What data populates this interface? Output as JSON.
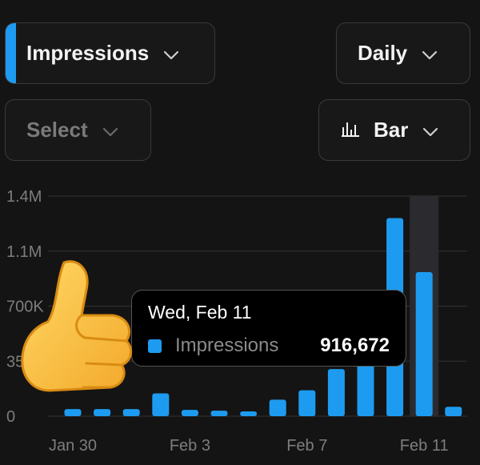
{
  "controls": {
    "metric": "Impressions",
    "period": "Daily",
    "compare": "Select",
    "chart_type": "Bar"
  },
  "tooltip": {
    "date": "Wed, Feb 11",
    "series": "Impressions",
    "value": "916,672"
  },
  "colors": {
    "accent": "#1d9bf0",
    "highlight": "#2b2b2f"
  },
  "icons": [
    "chevron-down-icon",
    "bar-chart-icon",
    "thumbs-up-emoji"
  ],
  "chart_data": {
    "type": "bar",
    "x_tick_labels": [
      "Jan 30",
      "Feb 3",
      "Feb 7",
      "Feb 11"
    ],
    "y_tick_labels": [
      "0",
      "35",
      "700K",
      "1.1M",
      "1.4M"
    ],
    "ylim": [
      0,
      1400000
    ],
    "values": [
      45000,
      45000,
      45000,
      145000,
      40000,
      35000,
      30000,
      105000,
      165000,
      300000,
      340000,
      1260000,
      916672,
      60000
    ],
    "highlight_index": 12,
    "grid": true
  }
}
